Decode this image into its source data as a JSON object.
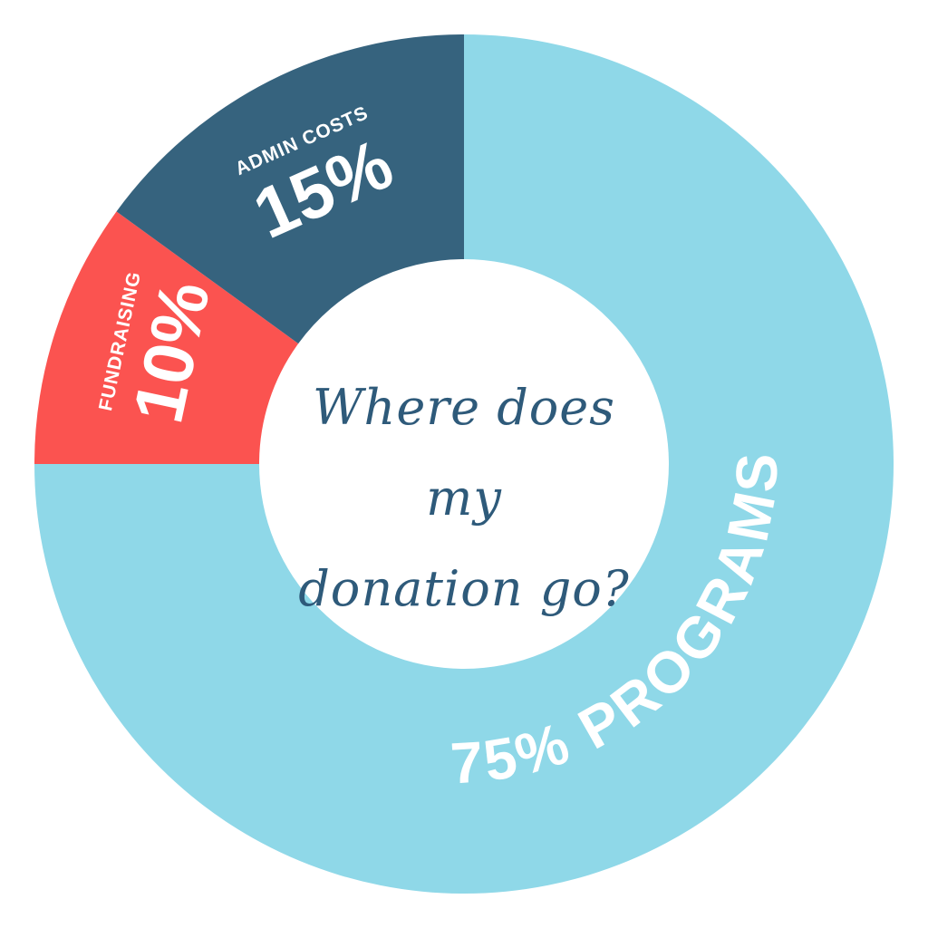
{
  "chart_data": {
    "type": "pie",
    "title": "Where does my donation go?",
    "title_lines": [
      "Where does my",
      "donation go?"
    ],
    "slices": [
      {
        "label": "PROGRAMS",
        "value": 75,
        "display": "75% PROGRAMS",
        "color": "#8fd8e8"
      },
      {
        "label": "FUNDRAISING",
        "value": 10,
        "display": "10%",
        "color": "#fb5350"
      },
      {
        "label": "ADMIN COSTS",
        "value": 15,
        "display": "15%",
        "color": "#36637e"
      }
    ],
    "donut": true
  }
}
